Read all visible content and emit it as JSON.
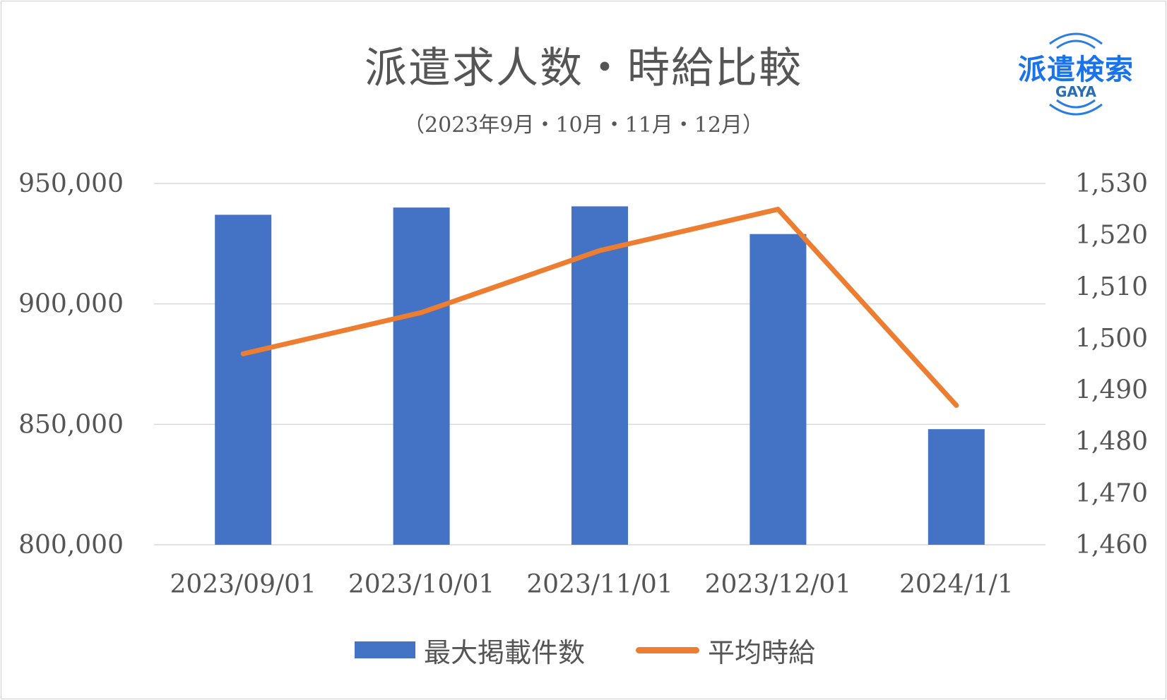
{
  "header": {
    "title": "派遣求人数・時給比較",
    "subtitle": "（2023年9月・10月・11月・12月）"
  },
  "logo": {
    "main_text": "派遣検索",
    "sub_text": "GAYA",
    "color": "#1a73e8"
  },
  "chart_data": {
    "type": "bar",
    "categories": [
      "2023/09/01",
      "2023/10/01",
      "2023/11/01",
      "2023/12/01",
      "2024/1/1"
    ],
    "series": [
      {
        "name": "最大掲載件数",
        "type": "bar",
        "axis": "left",
        "color": "#4472c4",
        "values": [
          937000,
          940000,
          940500,
          929000,
          848000
        ]
      },
      {
        "name": "平均時給",
        "type": "line",
        "axis": "right",
        "color": "#ed7d31",
        "values": [
          1497,
          1505,
          1517,
          1525,
          1487
        ]
      }
    ],
    "y_left": {
      "ylim": [
        800000,
        950000
      ],
      "ticks": [
        800000,
        850000,
        900000,
        950000
      ],
      "tick_labels": [
        "800,000",
        "850,000",
        "900,000",
        "950,000"
      ]
    },
    "y_right": {
      "ylim": [
        1460,
        1530
      ],
      "ticks": [
        1460,
        1470,
        1480,
        1490,
        1500,
        1510,
        1520,
        1530
      ],
      "tick_labels": [
        "1,460",
        "1,470",
        "1,480",
        "1,490",
        "1,500",
        "1,510",
        "1,520",
        "1,530"
      ]
    },
    "grid": true,
    "legend": "bottom"
  },
  "legend": {
    "bar_label": "最大掲載件数",
    "line_label": "平均時給"
  }
}
